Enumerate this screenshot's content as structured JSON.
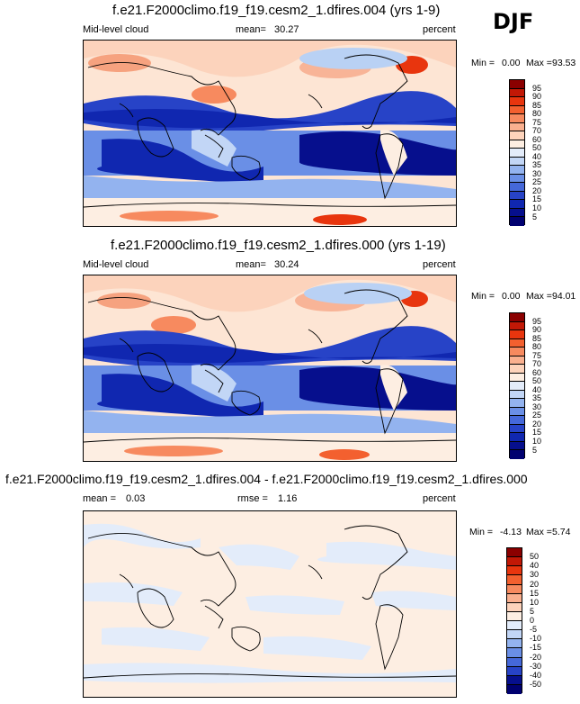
{
  "season": "DJF",
  "panels": [
    {
      "title": "f.e21.F2000climo.f19_f19.cesm2_1.dfires.004 (yrs 1-9)",
      "left_label": "Mid-level cloud",
      "stat_label": "mean=",
      "stat_value": "30.27",
      "units": "percent",
      "min_label": "Min =",
      "min_value": "0.00",
      "max_label": "Max =",
      "max_value": "93.53"
    },
    {
      "title": "f.e21.F2000climo.f19_f19.cesm2_1.dfires.000 (yrs 1-19)",
      "left_label": "Mid-level cloud",
      "stat_label": "mean=",
      "stat_value": "30.24",
      "units": "percent",
      "min_label": "Min =",
      "min_value": "0.00",
      "max_label": "Max =",
      "max_value": "94.01"
    },
    {
      "title": "f.e21.F2000climo.f19_f19.cesm2_1.dfires.004 - f.e21.F2000climo.f19_f19.cesm2_1.dfires.000",
      "left_label": "mean =",
      "left_value": "0.03",
      "stat_label": "rmse =",
      "stat_value": "1.16",
      "units": "percent",
      "min_label": "Min =",
      "min_value": "-4.13",
      "max_label": "Max =",
      "max_value": "5.74"
    }
  ],
  "colorbars": {
    "abs": {
      "labels": [
        "95",
        "90",
        "85",
        "80",
        "75",
        "70",
        "60",
        "50",
        "40",
        "35",
        "30",
        "25",
        "20",
        "15",
        "10",
        "5"
      ],
      "colors": [
        "#8b0000",
        "#c21806",
        "#e8350e",
        "#f3602f",
        "#f78a5f",
        "#fab08f",
        "#fdd3bb",
        "#fdeee2",
        "#e3ecfa",
        "#c2d6f6",
        "#93b3ef",
        "#6a8fe6",
        "#4568d9",
        "#2743c7",
        "#1027b0",
        "#060f8d",
        "#000070"
      ]
    },
    "diff": {
      "labels": [
        "50",
        "40",
        "30",
        "20",
        "15",
        "10",
        "5",
        "0",
        "-5",
        "-10",
        "-15",
        "-20",
        "-30",
        "-40",
        "-50"
      ],
      "colors": [
        "#8b0000",
        "#c21806",
        "#e8350e",
        "#f3602f",
        "#f78a5f",
        "#fab08f",
        "#fdd3bb",
        "#fdeee2",
        "#e3ecfa",
        "#c2d6f6",
        "#93b3ef",
        "#6a8fe6",
        "#4568d9",
        "#2743c7",
        "#060f8d",
        "#000070"
      ]
    }
  },
  "chart_data": [
    {
      "type": "heatmap",
      "title": "f.e21.F2000climo.f19_f19.cesm2_1.dfires.004 (yrs 1-9)",
      "variable": "Mid-level cloud",
      "units": "percent",
      "mean": 30.27,
      "min": 0.0,
      "max": 93.53,
      "contour_levels": [
        5,
        10,
        15,
        20,
        25,
        30,
        35,
        40,
        50,
        60,
        70,
        75,
        80,
        85,
        90,
        95
      ]
    },
    {
      "type": "heatmap",
      "title": "f.e21.F2000climo.f19_f19.cesm2_1.dfires.000 (yrs 1-19)",
      "variable": "Mid-level cloud",
      "units": "percent",
      "mean": 30.24,
      "min": 0.0,
      "max": 94.01,
      "contour_levels": [
        5,
        10,
        15,
        20,
        25,
        30,
        35,
        40,
        50,
        60,
        70,
        75,
        80,
        85,
        90,
        95
      ]
    },
    {
      "type": "heatmap",
      "title": "f.e21.F2000climo.f19_f19.cesm2_1.dfires.004 - f.e21.F2000climo.f19_f19.cesm2_1.dfires.000",
      "units": "percent",
      "mean": 0.03,
      "rmse": 1.16,
      "min": -4.13,
      "max": 5.74,
      "contour_levels": [
        -50,
        -40,
        -30,
        -20,
        -15,
        -10,
        -5,
        0,
        5,
        10,
        15,
        20,
        30,
        40,
        50
      ]
    }
  ]
}
